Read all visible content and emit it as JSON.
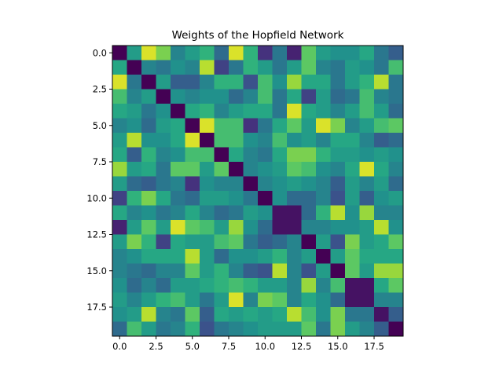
{
  "chart_data": {
    "type": "heatmap",
    "title": "Weights of the Hopfield Network",
    "xlabel": "",
    "ylabel": "",
    "rows": 20,
    "cols": 20,
    "xlim": [
      -0.5,
      19.5
    ],
    "ylim": [
      19.5,
      -0.5
    ],
    "x_ticks": [
      0.0,
      2.5,
      5.0,
      7.5,
      10.0,
      12.5,
      15.0,
      17.5
    ],
    "x_tick_labels": [
      "0.0",
      "2.5",
      "5.0",
      "7.5",
      "10.0",
      "12.5",
      "15.0",
      "17.5"
    ],
    "y_ticks": [
      0.0,
      2.5,
      5.0,
      7.5,
      10.0,
      12.5,
      15.0,
      17.5
    ],
    "y_tick_labels": [
      "0.0",
      "2.5",
      "5.0",
      "7.5",
      "10.0",
      "12.5",
      "15.0",
      "17.5"
    ],
    "colormap": "viridis",
    "grid": false,
    "values": [
      [
        0.0,
        0.55,
        0.95,
        0.8,
        0.45,
        0.55,
        0.65,
        0.35,
        0.95,
        0.65,
        0.15,
        0.4,
        0.1,
        0.75,
        0.55,
        0.5,
        0.5,
        0.6,
        0.4,
        0.3
      ],
      [
        0.6,
        0.0,
        0.45,
        0.4,
        0.5,
        0.45,
        0.9,
        0.2,
        0.4,
        0.65,
        0.55,
        0.4,
        0.55,
        0.75,
        0.45,
        0.4,
        0.55,
        0.5,
        0.4,
        0.7
      ],
      [
        0.95,
        0.4,
        0.0,
        0.55,
        0.3,
        0.3,
        0.45,
        0.65,
        0.65,
        0.25,
        0.7,
        0.5,
        0.85,
        0.6,
        0.6,
        0.4,
        0.55,
        0.65,
        0.9,
        0.4
      ],
      [
        0.7,
        0.45,
        0.55,
        0.0,
        0.5,
        0.45,
        0.5,
        0.5,
        0.35,
        0.45,
        0.7,
        0.4,
        0.6,
        0.2,
        0.55,
        0.35,
        0.4,
        0.7,
        0.45,
        0.4
      ],
      [
        0.6,
        0.55,
        0.4,
        0.5,
        0.0,
        0.6,
        0.65,
        0.45,
        0.55,
        0.6,
        0.6,
        0.4,
        0.95,
        0.6,
        0.55,
        0.45,
        0.55,
        0.7,
        0.55,
        0.35
      ],
      [
        0.45,
        0.5,
        0.35,
        0.55,
        0.6,
        0.0,
        0.95,
        0.7,
        0.7,
        0.15,
        0.4,
        0.6,
        0.75,
        0.55,
        0.95,
        0.8,
        0.45,
        0.55,
        0.7,
        0.75
      ],
      [
        0.55,
        0.9,
        0.5,
        0.5,
        0.6,
        0.95,
        0.0,
        0.7,
        0.7,
        0.5,
        0.45,
        0.7,
        0.5,
        0.55,
        0.45,
        0.6,
        0.6,
        0.45,
        0.3,
        0.35
      ],
      [
        0.6,
        0.3,
        0.65,
        0.45,
        0.5,
        0.7,
        0.7,
        0.0,
        0.6,
        0.45,
        0.4,
        0.6,
        0.8,
        0.8,
        0.65,
        0.55,
        0.55,
        0.5,
        0.55,
        0.5
      ],
      [
        0.85,
        0.55,
        0.6,
        0.4,
        0.75,
        0.75,
        0.55,
        0.75,
        0.0,
        0.45,
        0.5,
        0.55,
        0.75,
        0.7,
        0.5,
        0.45,
        0.6,
        0.95,
        0.6,
        0.45
      ],
      [
        0.55,
        0.35,
        0.3,
        0.4,
        0.45,
        0.15,
        0.5,
        0.45,
        0.45,
        0.0,
        0.45,
        0.5,
        0.55,
        0.5,
        0.45,
        0.3,
        0.55,
        0.45,
        0.55,
        0.35
      ],
      [
        0.2,
        0.65,
        0.8,
        0.6,
        0.4,
        0.35,
        0.55,
        0.55,
        0.5,
        0.4,
        0.0,
        0.5,
        0.35,
        0.35,
        0.45,
        0.25,
        0.55,
        0.3,
        0.5,
        0.55
      ],
      [
        0.6,
        0.45,
        0.5,
        0.4,
        0.45,
        0.6,
        0.45,
        0.35,
        0.4,
        0.55,
        0.5,
        0.05,
        0.05,
        0.35,
        0.65,
        0.9,
        0.5,
        0.85,
        0.45,
        0.45
      ],
      [
        0.1,
        0.55,
        0.75,
        0.55,
        0.95,
        0.75,
        0.7,
        0.55,
        0.85,
        0.5,
        0.35,
        0.05,
        0.05,
        0.45,
        0.45,
        0.5,
        0.5,
        0.55,
        0.9,
        0.5
      ],
      [
        0.55,
        0.8,
        0.65,
        0.2,
        0.6,
        0.55,
        0.55,
        0.7,
        0.75,
        0.4,
        0.3,
        0.35,
        0.45,
        0.0,
        0.55,
        0.25,
        0.8,
        0.55,
        0.6,
        0.75
      ],
      [
        0.45,
        0.5,
        0.6,
        0.6,
        0.6,
        0.9,
        0.55,
        0.35,
        0.5,
        0.5,
        0.55,
        0.65,
        0.45,
        0.55,
        0.0,
        0.55,
        0.75,
        0.6,
        0.6,
        0.6
      ],
      [
        0.45,
        0.4,
        0.35,
        0.45,
        0.45,
        0.75,
        0.55,
        0.65,
        0.45,
        0.3,
        0.25,
        0.9,
        0.45,
        0.25,
        0.55,
        0.0,
        0.75,
        0.55,
        0.85,
        0.85
      ],
      [
        0.5,
        0.35,
        0.45,
        0.35,
        0.55,
        0.55,
        0.6,
        0.65,
        0.7,
        0.65,
        0.55,
        0.55,
        0.45,
        0.85,
        0.45,
        0.7,
        0.05,
        0.05,
        0.6,
        0.75
      ],
      [
        0.55,
        0.45,
        0.55,
        0.65,
        0.7,
        0.55,
        0.4,
        0.55,
        0.95,
        0.45,
        0.8,
        0.75,
        0.45,
        0.6,
        0.5,
        0.35,
        0.05,
        0.05,
        0.45,
        0.45
      ],
      [
        0.5,
        0.55,
        0.9,
        0.45,
        0.4,
        0.75,
        0.3,
        0.6,
        0.55,
        0.6,
        0.55,
        0.6,
        0.9,
        0.7,
        0.5,
        0.8,
        0.4,
        0.4,
        0.05,
        0.3
      ],
      [
        0.35,
        0.7,
        0.55,
        0.4,
        0.45,
        0.65,
        0.25,
        0.4,
        0.45,
        0.5,
        0.55,
        0.55,
        0.55,
        0.75,
        0.4,
        0.8,
        0.55,
        0.45,
        0.3,
        0.0
      ]
    ]
  }
}
